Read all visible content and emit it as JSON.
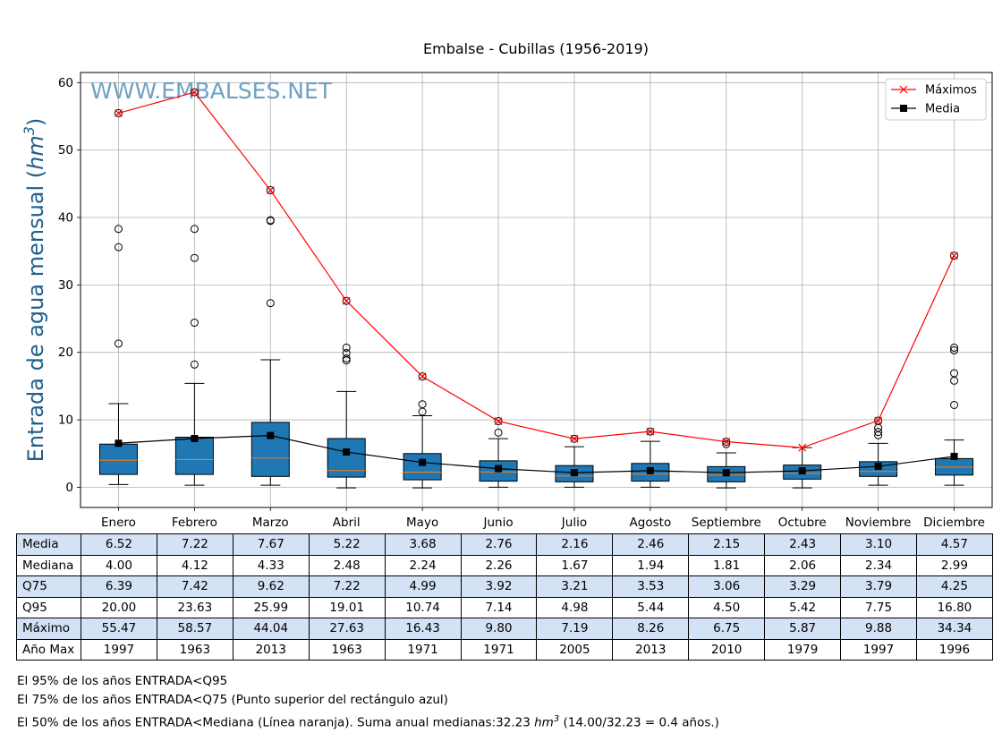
{
  "chart_data": {
    "type": "box",
    "title": "Embalse - Cubillas (1956-2019)",
    "ylabel": "Entrada de agua mensual",
    "ylabel_unit_base": "hm",
    "ylabel_unit_exp": "3",
    "watermark": "WWW.EMBALSES.NET",
    "ylim": [
      -3,
      61.5
    ],
    "yticks": [
      0,
      10,
      20,
      30,
      40,
      50,
      60
    ],
    "grid": true,
    "legend_position": "top-right",
    "categories": [
      "Enero",
      "Febrero",
      "Marzo",
      "Abril",
      "Mayo",
      "Junio",
      "Julio",
      "Agosto",
      "Septiembre",
      "Octubre",
      "Noviembre",
      "Diciembre"
    ],
    "boxes": [
      {
        "whislo": 0.4,
        "q1": 1.9,
        "med": 4.0,
        "q3": 6.39,
        "whishi": 12.4,
        "fliers": [
          21.3,
          35.6,
          38.3,
          55.47
        ]
      },
      {
        "whislo": 0.3,
        "q1": 1.9,
        "med": 4.12,
        "q3": 7.42,
        "whishi": 15.4,
        "fliers": [
          18.2,
          24.4,
          34.0,
          38.3,
          58.57
        ]
      },
      {
        "whislo": 0.3,
        "q1": 1.6,
        "med": 4.33,
        "q3": 9.62,
        "whishi": 18.9,
        "fliers": [
          27.3,
          39.5,
          39.6,
          44.04
        ]
      },
      {
        "whislo": -0.1,
        "q1": 1.5,
        "med": 2.48,
        "q3": 7.22,
        "whishi": 14.2,
        "fliers": [
          18.8,
          19.1,
          19.9,
          20.7,
          27.63
        ]
      },
      {
        "whislo": -0.1,
        "q1": 1.1,
        "med": 2.24,
        "q3": 4.99,
        "whishi": 10.6,
        "fliers": [
          11.2,
          12.3,
          16.43
        ]
      },
      {
        "whislo": 0.0,
        "q1": 0.9,
        "med": 2.26,
        "q3": 3.92,
        "whishi": 7.2,
        "fliers": [
          8.1,
          9.8
        ]
      },
      {
        "whislo": 0.0,
        "q1": 0.8,
        "med": 1.67,
        "q3": 3.21,
        "whishi": 6.0,
        "fliers": [
          7.19
        ]
      },
      {
        "whislo": 0.0,
        "q1": 0.9,
        "med": 1.94,
        "q3": 3.53,
        "whishi": 6.8,
        "fliers": [
          8.26
        ]
      },
      {
        "whislo": -0.1,
        "q1": 0.8,
        "med": 1.81,
        "q3": 3.06,
        "whishi": 5.1,
        "fliers": [
          6.4,
          6.75
        ]
      },
      {
        "whislo": -0.1,
        "q1": 1.2,
        "med": 2.06,
        "q3": 3.29,
        "whishi": 5.87,
        "fliers": []
      },
      {
        "whislo": 0.3,
        "q1": 1.6,
        "med": 2.34,
        "q3": 3.79,
        "whishi": 6.5,
        "fliers": [
          7.7,
          8.2,
          8.8,
          9.88
        ]
      },
      {
        "whislo": 0.3,
        "q1": 1.8,
        "med": 2.99,
        "q3": 4.25,
        "whishi": 7.0,
        "fliers": [
          12.2,
          15.8,
          16.9,
          20.3,
          20.7,
          34.34
        ]
      }
    ],
    "series": [
      {
        "name": "Máximos",
        "color": "#ff0000",
        "marker": "x",
        "values": [
          55.47,
          58.57,
          44.04,
          27.63,
          16.43,
          9.8,
          7.19,
          8.26,
          6.75,
          5.87,
          9.88,
          34.34
        ]
      },
      {
        "name": "Media",
        "color": "#000000",
        "marker": "square",
        "values": [
          6.52,
          7.22,
          7.67,
          5.22,
          3.68,
          2.76,
          2.16,
          2.46,
          2.15,
          2.43,
          3.1,
          4.57
        ]
      }
    ],
    "colors": {
      "box": "#1f77b4",
      "median": "#ff7f0e",
      "ylabel": "#1f5f8b",
      "watermark": "#6fa1c2",
      "grid": "#b0b0b0",
      "row_shade": "#d3e2f5"
    }
  },
  "table": {
    "rows": [
      {
        "label": "Media",
        "shade": true,
        "values": [
          "6.52",
          "7.22",
          "7.67",
          "5.22",
          "3.68",
          "2.76",
          "2.16",
          "2.46",
          "2.15",
          "2.43",
          "3.10",
          "4.57"
        ]
      },
      {
        "label": "Mediana",
        "shade": false,
        "values": [
          "4.00",
          "4.12",
          "4.33",
          "2.48",
          "2.24",
          "2.26",
          "1.67",
          "1.94",
          "1.81",
          "2.06",
          "2.34",
          "2.99"
        ]
      },
      {
        "label": "Q75",
        "shade": true,
        "values": [
          "6.39",
          "7.42",
          "9.62",
          "7.22",
          "4.99",
          "3.92",
          "3.21",
          "3.53",
          "3.06",
          "3.29",
          "3.79",
          "4.25"
        ]
      },
      {
        "label": "Q95",
        "shade": false,
        "values": [
          "20.00",
          "23.63",
          "25.99",
          "19.01",
          "10.74",
          "7.14",
          "4.98",
          "5.44",
          "4.50",
          "5.42",
          "7.75",
          "16.80"
        ]
      },
      {
        "label": "Máximo",
        "shade": true,
        "values": [
          "55.47",
          "58.57",
          "44.04",
          "27.63",
          "16.43",
          "9.80",
          "7.19",
          "8.26",
          "6.75",
          "5.87",
          "9.88",
          "34.34"
        ]
      },
      {
        "label": "Año Max",
        "shade": false,
        "values": [
          "1997",
          "1963",
          "2013",
          "1963",
          "1971",
          "1971",
          "2005",
          "2013",
          "2010",
          "1979",
          "1997",
          "1996"
        ]
      }
    ]
  },
  "notes": {
    "line1": "El 95% de los años ENTRADA<Q95",
    "line2": "El 75% de los años ENTRADA<Q75 (Punto superior del rectángulo azul)",
    "line3_prefix": "El 50% de los años ENTRADA<Mediana (Línea naranja). Suma anual medianas:32.23 ",
    "line3_unit_base": "hm",
    "line3_unit_exp": "3",
    "line3_suffix": " (14.00/32.23 = 0.4 años.)"
  }
}
